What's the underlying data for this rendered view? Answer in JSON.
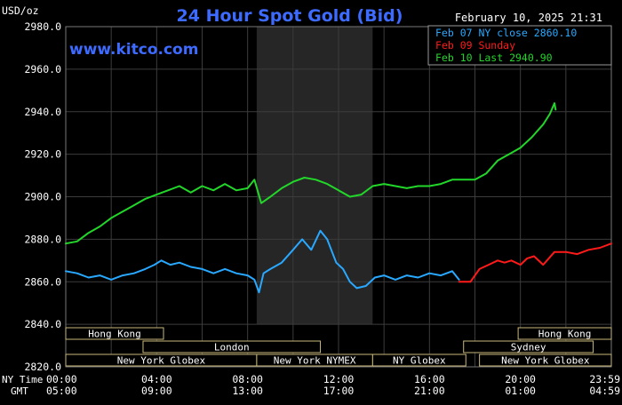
{
  "header": {
    "unit": "USD/oz",
    "title": "24 Hour Spot Gold (Bid)",
    "datetime": "February 10, 2025 21:31",
    "watermark": "www.kitco.com"
  },
  "legend": [
    {
      "label": "Feb 07 NY close 2860.10",
      "color": "#29a8ff"
    },
    {
      "label": "Feb 09 Sunday",
      "color": "#ff1a1a"
    },
    {
      "label": "Feb 10 Last 2940.90",
      "color": "#22d62a"
    }
  ],
  "time_rows": {
    "ny_label": "NY Time",
    "gmt_label": "GMT",
    "ny_ticks": [
      "00:00",
      "04:00",
      "08:00",
      "12:00",
      "16:00",
      "20:00",
      "23:59"
    ],
    "gmt_ticks": [
      "05:00",
      "09:00",
      "13:00",
      "17:00",
      "21:00",
      "01:00",
      "04:59"
    ]
  },
  "sessions": [
    {
      "label": "Hong Kong",
      "row": 0,
      "start_h": 0,
      "end_h": 4.3
    },
    {
      "label": "Hong Kong",
      "row": 0,
      "start_h": 19.9,
      "end_h": 24
    },
    {
      "label": "London",
      "row": 1,
      "start_h": 3.4,
      "end_h": 11.2
    },
    {
      "label": "Sydney",
      "row": 1,
      "start_h": 17.5,
      "end_h": 23.2
    },
    {
      "label": "New York Globex",
      "row": 2,
      "start_h": 0,
      "end_h": 8.4
    },
    {
      "label": "New York NYMEX",
      "row": 2,
      "start_h": 8.4,
      "end_h": 13.5
    },
    {
      "label": "NY Globex",
      "row": 2,
      "start_h": 13.5,
      "end_h": 17.6
    },
    {
      "label": "New York Globex",
      "row": 2,
      "start_h": 18.2,
      "end_h": 24
    }
  ],
  "colors": {
    "background": "#000000",
    "grid": "#3c3c3c",
    "axis_text": "#ffffff",
    "title": "#3e6bff",
    "watermark": "#3e6bff",
    "session_text": "#ffffff",
    "session_border": "#c8b97a",
    "nymex_shade": "#262626"
  },
  "chart_data": {
    "type": "line",
    "xlabel": "",
    "ylabel": "USD/oz",
    "xlim": [
      0,
      24
    ],
    "ylim": [
      2820,
      2980
    ],
    "y_ticks": [
      "2820.0",
      "2840.0",
      "2860.0",
      "2880.0",
      "2900.0",
      "2920.0",
      "2940.0",
      "2960.0",
      "2980.0"
    ],
    "x_tick_hours": [
      0,
      4,
      8,
      12,
      16,
      20,
      24
    ],
    "shaded_region_hours": [
      8.4,
      13.5
    ],
    "grid": true,
    "legend_position": "top-right",
    "series": [
      {
        "name": "Feb 07 NY close 2860.10",
        "color": "#29a8ff",
        "x": [
          0,
          0.5,
          1.0,
          1.5,
          2.0,
          2.5,
          3.0,
          3.5,
          3.9,
          4.2,
          4.6,
          5.0,
          5.5,
          6.0,
          6.5,
          7.0,
          7.5,
          8.0,
          8.3,
          8.5,
          8.7,
          9.0,
          9.5,
          10.0,
          10.4,
          10.8,
          11.2,
          11.5,
          11.9,
          12.2,
          12.5,
          12.8,
          13.2,
          13.6,
          14.0,
          14.5,
          15.0,
          15.5,
          16.0,
          16.5,
          17.0,
          17.3
        ],
        "y": [
          2865,
          2864,
          2862,
          2863,
          2861,
          2863,
          2864,
          2866,
          2868,
          2870,
          2868,
          2869,
          2867,
          2866,
          2864,
          2866,
          2864,
          2863,
          2861,
          2855,
          2864,
          2866,
          2869,
          2875,
          2880,
          2875,
          2884,
          2880,
          2869,
          2866,
          2860,
          2857,
          2858,
          2862,
          2863,
          2861,
          2863,
          2862,
          2864,
          2863,
          2865,
          2861
        ]
      },
      {
        "name": "Feb 09 Sunday",
        "color": "#ff1a1a",
        "x": [
          17.3,
          17.8,
          18.2,
          18.6,
          19.0,
          19.3,
          19.6,
          20.0,
          20.3,
          20.6,
          21.0,
          21.5,
          22.0,
          22.5,
          23.0,
          23.5,
          24.0
        ],
        "y": [
          2860,
          2860,
          2866,
          2868,
          2870,
          2869,
          2870,
          2868,
          2871,
          2872,
          2868,
          2874,
          2874,
          2873,
          2875,
          2876,
          2878
        ]
      },
      {
        "name": "Feb 10 Last 2940.90",
        "color": "#22d62a",
        "x": [
          0,
          0.5,
          1.0,
          1.5,
          2.0,
          2.5,
          3.0,
          3.5,
          4.0,
          4.5,
          5.0,
          5.5,
          6.0,
          6.5,
          7.0,
          7.5,
          8.0,
          8.3,
          8.6,
          9.0,
          9.5,
          10.0,
          10.5,
          11.0,
          11.5,
          12.0,
          12.5,
          13.0,
          13.5,
          14.0,
          14.5,
          15.0,
          15.5,
          16.0,
          16.5,
          17.0,
          17.5,
          18.0,
          18.5,
          19.0,
          19.5,
          20.0,
          20.5,
          21.0,
          21.3,
          21.5,
          21.55
        ],
        "y": [
          2878,
          2879,
          2883,
          2886,
          2890,
          2893,
          2896,
          2899,
          2901,
          2903,
          2905,
          2902,
          2905,
          2903,
          2906,
          2903,
          2904,
          2908,
          2897,
          2900,
          2904,
          2907,
          2909,
          2908,
          2906,
          2903,
          2900,
          2901,
          2905,
          2906,
          2905,
          2904,
          2905,
          2905,
          2906,
          2908,
          2908,
          2908,
          2911,
          2917,
          2920,
          2923,
          2928,
          2934,
          2939,
          2944,
          2941
        ]
      }
    ]
  }
}
